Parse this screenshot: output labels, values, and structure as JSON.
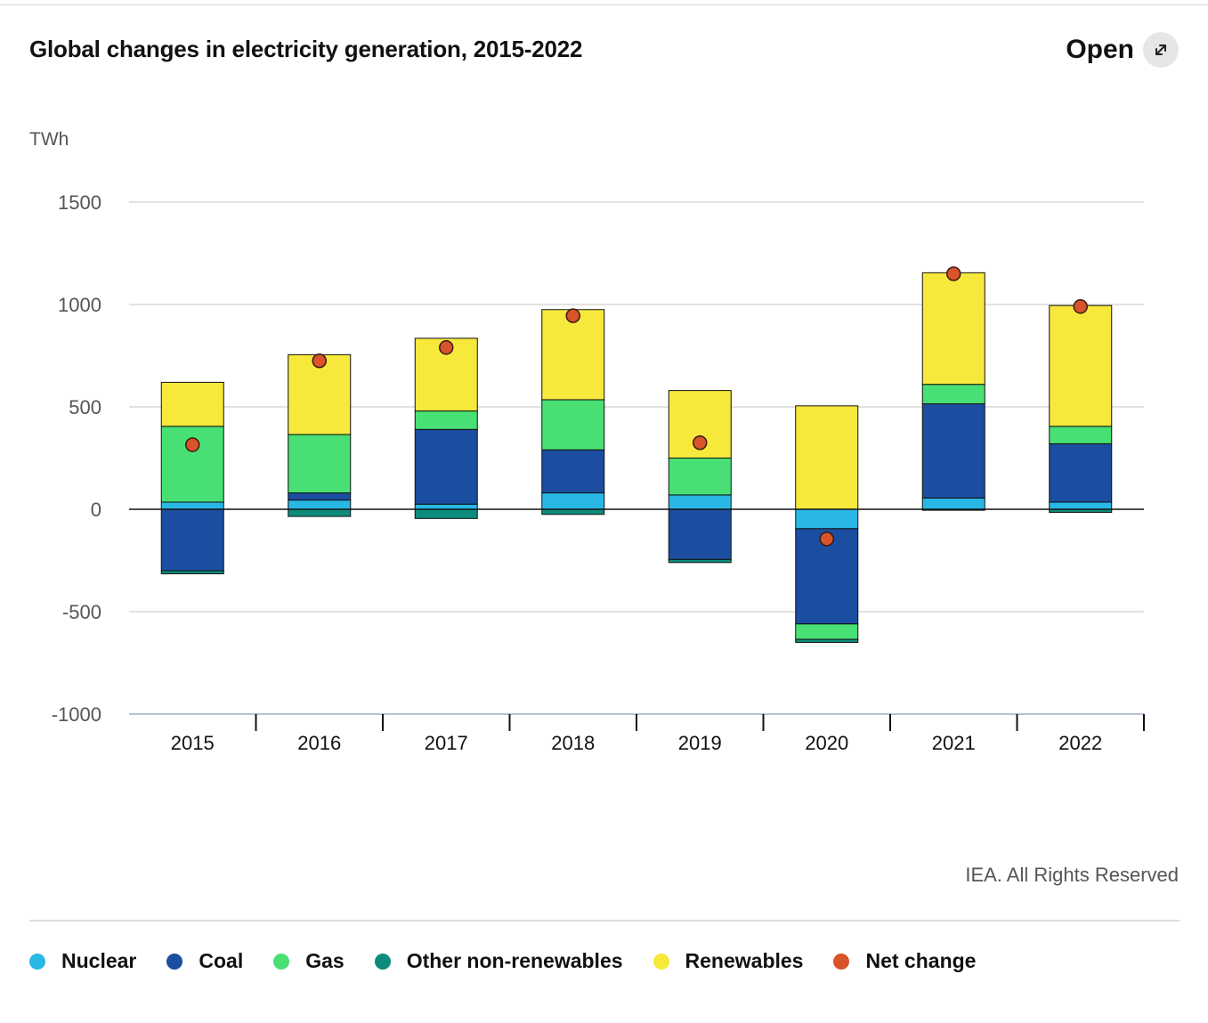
{
  "header": {
    "title": "Global changes in electricity generation, 2015-2022",
    "open_label": "Open"
  },
  "icons": {
    "open": "expand-arrows-icon"
  },
  "credit": "IEA. All Rights Reserved",
  "colors": {
    "Nuclear": "#29b8e6",
    "Coal": "#1b4ea0",
    "Gas": "#48e074",
    "Other non-renewables": "#0d8c7c",
    "Renewables": "#f7e83c",
    "Net change": "#d9532b",
    "Net change outline": "#3a1a10"
  },
  "chart_data": {
    "type": "bar",
    "stacked": true,
    "ylabel": "TWh",
    "xlabel": "",
    "ylim": [
      -1000,
      1500
    ],
    "yticks": [
      1500,
      1000,
      500,
      0,
      -500,
      -1000
    ],
    "grid": true,
    "legend_position": "bottom",
    "categories": [
      "2015",
      "2016",
      "2017",
      "2018",
      "2019",
      "2020",
      "2021",
      "2022"
    ],
    "series": [
      {
        "name": "Nuclear",
        "values": [
          35,
          45,
          25,
          80,
          70,
          -95,
          55,
          35
        ]
      },
      {
        "name": "Coal",
        "values": [
          -300,
          35,
          365,
          210,
          -245,
          -465,
          460,
          285
        ]
      },
      {
        "name": "Gas",
        "values": [
          370,
          285,
          90,
          245,
          180,
          -75,
          95,
          85
        ]
      },
      {
        "name": "Other non-renewables",
        "values": [
          -15,
          -35,
          -45,
          -25,
          -15,
          -15,
          -5,
          -15
        ]
      },
      {
        "name": "Renewables",
        "values": [
          215,
          390,
          355,
          440,
          330,
          505,
          545,
          590
        ]
      },
      {
        "name": "Net change",
        "type": "scatter",
        "values": [
          315,
          725,
          790,
          945,
          325,
          -145,
          1150,
          990
        ]
      }
    ]
  }
}
